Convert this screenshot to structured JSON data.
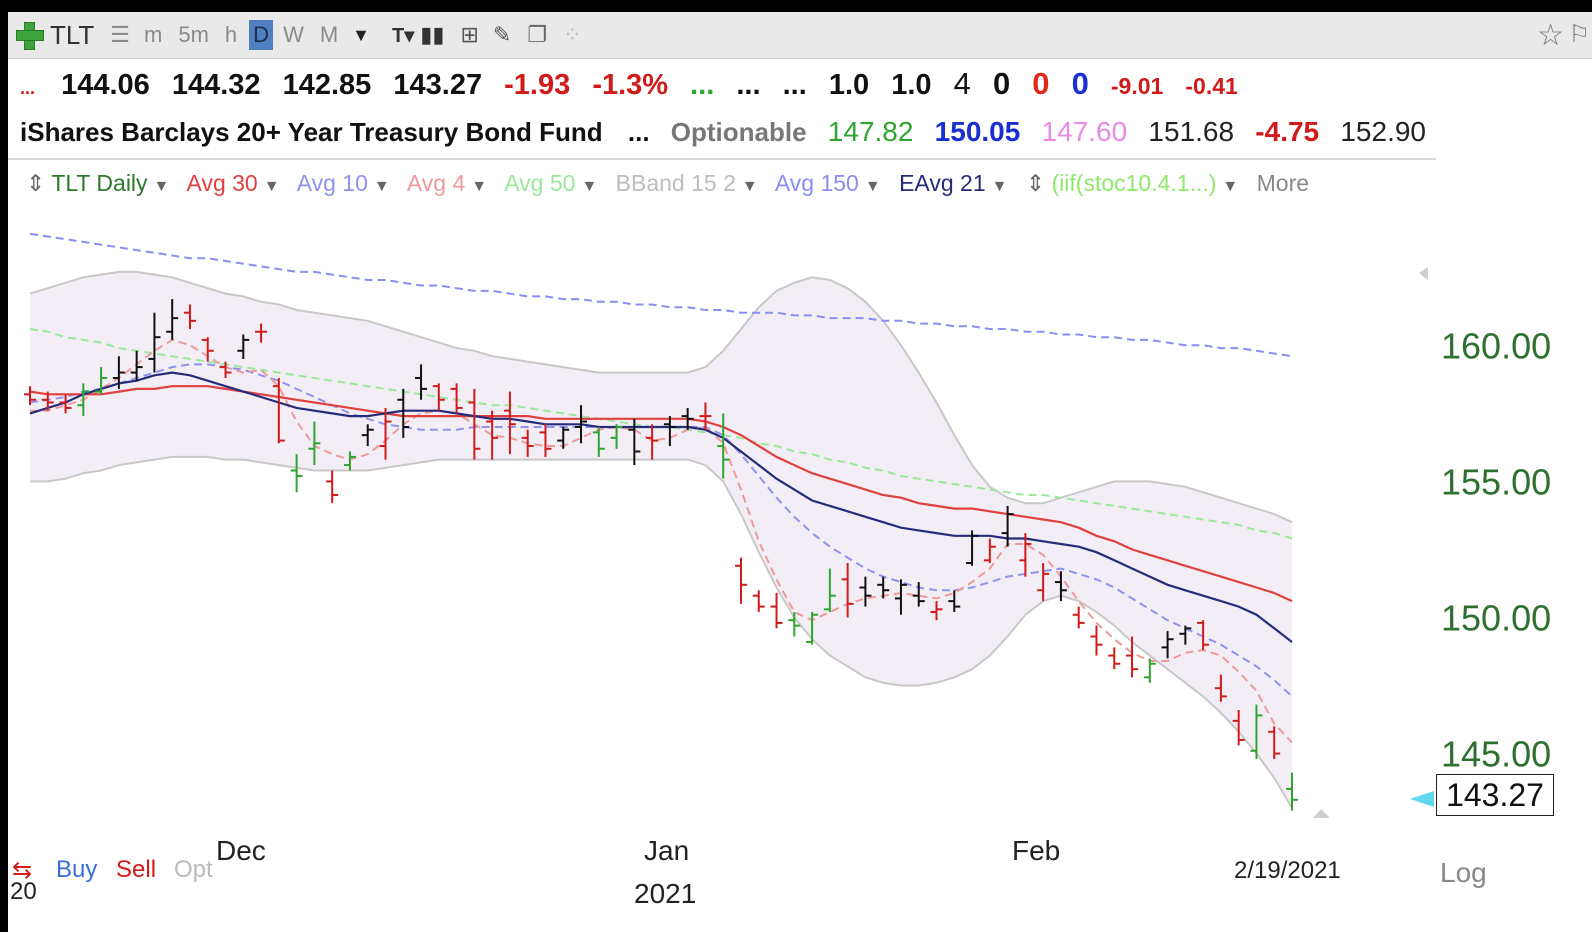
{
  "toolbar": {
    "symbol": "TLT",
    "intervals": [
      "m",
      "5m",
      "h",
      "D",
      "W",
      "M"
    ],
    "active_interval": "D",
    "icons": [
      "plus-icon",
      "list-icon",
      "dropdown-icon",
      "text-tool-icon",
      "bar-style-icon",
      "grid-icon",
      "pencil-icon",
      "pages-icon",
      "dots-icon",
      "star-icon",
      "flag-icon"
    ]
  },
  "quote": {
    "open": "144.06",
    "high": "144.32",
    "low": "142.85",
    "close": "143.27",
    "change": "-1.93",
    "change_pct": "-1.3%",
    "dots_red": "...",
    "dots_green": "...",
    "dots_black1": "...",
    "dots_black2": "...",
    "v1": "1.0",
    "v2": "1.0",
    "n1": "4",
    "n2": "0",
    "n3": "0",
    "n4": "0",
    "m1": "-9.01",
    "m2": "-0.41"
  },
  "fund": {
    "name": "iShares Barclays 20+ Year Treasury Bond Fund",
    "dots": "...",
    "optionable": "Optionable",
    "f1": "147.82",
    "f2": "150.05",
    "f3": "147.60",
    "f4": "151.68",
    "f5": "-4.75",
    "f6": "152.90"
  },
  "colors": {
    "up": "#2fa52f",
    "down": "#d11a1a",
    "neutral": "#111111",
    "avg30": "#e04040",
    "avg10": "#8f92ee",
    "avg4": "#ee9a9a",
    "avg50": "#9be89b",
    "ema21": "#262c7a",
    "avg150": "#8a8ef0",
    "bband": "#c8c8c8",
    "bband_fill": "#f3eef6"
  },
  "chart_data": {
    "type": "ohlc",
    "title": "TLT Daily",
    "indicators": [
      "Avg 30",
      "Avg 10",
      "Avg 4",
      "Avg 50",
      "BBand 15 2",
      "Avg 150",
      "EAvg 21",
      "(iif(stoc10.4.1...)",
      "More"
    ],
    "y_ticks": [
      "160.00",
      "155.00",
      "150.00",
      "145.00"
    ],
    "ylim": [
      142.3,
      164.9
    ],
    "x_ticks": [
      "Dec",
      "Jan",
      "Feb"
    ],
    "year_label": "2021",
    "year_prefix": "20",
    "last_date": "2/19/2021",
    "last_price": "143.27",
    "scale": "Log",
    "buttons": [
      "Buy",
      "Sell",
      "Opt"
    ],
    "ohlc": [
      [
        158.2,
        158.5,
        157.8,
        158.0,
        "down"
      ],
      [
        158.0,
        158.3,
        157.6,
        157.9,
        "down"
      ],
      [
        157.9,
        158.2,
        157.5,
        157.7,
        "down"
      ],
      [
        157.8,
        158.6,
        157.4,
        158.3,
        "up"
      ],
      [
        158.3,
        159.2,
        158.2,
        158.8,
        "up"
      ],
      [
        158.8,
        159.6,
        158.4,
        159.0,
        "neutral"
      ],
      [
        159.0,
        159.8,
        158.7,
        159.2,
        "neutral"
      ],
      [
        159.5,
        161.2,
        159.0,
        160.3,
        "neutral"
      ],
      [
        160.5,
        161.7,
        160.2,
        161.0,
        "neutral"
      ],
      [
        161.2,
        161.5,
        160.6,
        160.9,
        "down"
      ],
      [
        160.2,
        160.3,
        159.4,
        159.8,
        "down"
      ],
      [
        159.2,
        159.4,
        158.8,
        159.0,
        "down"
      ],
      [
        159.8,
        160.4,
        159.5,
        160.2,
        "neutral"
      ],
      [
        160.5,
        160.8,
        160.1,
        160.5,
        "down"
      ],
      [
        158.5,
        158.8,
        156.4,
        156.5,
        "down"
      ],
      [
        155.4,
        156.0,
        154.6,
        155.2,
        "up"
      ],
      [
        156.2,
        157.2,
        155.6,
        156.4,
        "up"
      ],
      [
        155.0,
        155.4,
        154.2,
        154.5,
        "down"
      ],
      [
        155.6,
        156.1,
        155.4,
        155.9,
        "up"
      ],
      [
        156.7,
        157.1,
        156.3,
        156.9,
        "neutral"
      ],
      [
        156.3,
        157.7,
        155.8,
        157.2,
        "down"
      ],
      [
        158.0,
        158.4,
        156.6,
        157.0,
        "neutral"
      ],
      [
        158.8,
        159.3,
        158.0,
        158.4,
        "neutral"
      ],
      [
        158.5,
        158.6,
        157.6,
        158.0,
        "down"
      ],
      [
        158.4,
        158.6,
        157.5,
        157.7,
        "down"
      ],
      [
        157.9,
        158.4,
        155.8,
        156.2,
        "down"
      ],
      [
        157.2,
        157.6,
        155.8,
        156.6,
        "down"
      ],
      [
        157.6,
        158.3,
        156.0,
        157.1,
        "down"
      ],
      [
        156.6,
        156.9,
        155.9,
        156.3,
        "down"
      ],
      [
        156.8,
        157.1,
        155.9,
        156.2,
        "down"
      ],
      [
        156.5,
        157.0,
        156.2,
        156.9,
        "neutral"
      ],
      [
        157.0,
        157.8,
        156.4,
        157.2,
        "neutral"
      ],
      [
        156.8,
        157.0,
        155.9,
        156.2,
        "up"
      ],
      [
        156.6,
        157.1,
        156.2,
        157.0,
        "up"
      ],
      [
        156.9,
        157.3,
        155.6,
        156.1,
        "neutral"
      ],
      [
        156.6,
        157.1,
        155.8,
        156.5,
        "down"
      ],
      [
        157.1,
        157.4,
        156.3,
        157.0,
        "neutral"
      ],
      [
        157.4,
        157.7,
        156.9,
        157.3,
        "neutral"
      ],
      [
        157.4,
        157.9,
        156.9,
        157.4,
        "down"
      ],
      [
        156.3,
        157.5,
        155.1,
        155.8,
        "up"
      ],
      [
        151.9,
        152.2,
        150.5,
        151.2,
        "down"
      ],
      [
        150.8,
        151.0,
        150.2,
        150.4,
        "down"
      ],
      [
        150.4,
        150.9,
        149.6,
        149.8,
        "down"
      ],
      [
        149.9,
        150.2,
        149.3,
        149.7,
        "up"
      ],
      [
        149.1,
        150.2,
        149.0,
        150.1,
        "up"
      ],
      [
        150.3,
        151.8,
        150.2,
        150.8,
        "up"
      ],
      [
        151.4,
        152.0,
        150.0,
        150.5,
        "down"
      ],
      [
        151.1,
        151.5,
        150.4,
        150.8,
        "neutral"
      ],
      [
        151.2,
        151.5,
        150.7,
        151.0,
        "neutral"
      ],
      [
        150.7,
        151.4,
        150.1,
        151.2,
        "neutral"
      ],
      [
        150.8,
        151.3,
        150.4,
        150.6,
        "neutral"
      ],
      [
        150.2,
        150.6,
        149.9,
        150.3,
        "down"
      ],
      [
        150.6,
        151.0,
        150.2,
        150.4,
        "neutral"
      ],
      [
        152.0,
        153.2,
        151.9,
        153.0,
        "neutral"
      ],
      [
        152.1,
        152.9,
        152.0,
        152.6,
        "down"
      ],
      [
        153.1,
        154.1,
        152.6,
        153.8,
        "neutral"
      ],
      [
        152.1,
        153.1,
        151.5,
        152.7,
        "down"
      ],
      [
        151.0,
        152.0,
        150.6,
        151.6,
        "down"
      ],
      [
        151.3,
        151.7,
        150.6,
        151.0,
        "neutral"
      ],
      [
        150.1,
        150.4,
        149.6,
        149.8,
        "down"
      ],
      [
        149.3,
        149.7,
        148.6,
        149.0,
        "down"
      ],
      [
        148.6,
        148.9,
        148.1,
        148.3,
        "down"
      ],
      [
        148.6,
        149.3,
        147.8,
        148.1,
        "down"
      ],
      [
        147.8,
        148.5,
        147.6,
        148.3,
        "up"
      ],
      [
        148.9,
        149.5,
        148.5,
        149.2,
        "neutral"
      ],
      [
        149.4,
        149.7,
        149.0,
        149.6,
        "neutral"
      ],
      [
        149.8,
        149.9,
        148.8,
        149.0,
        "down"
      ],
      [
        147.4,
        147.9,
        146.9,
        147.1,
        "down"
      ],
      [
        146.2,
        146.6,
        145.3,
        145.5,
        "down"
      ],
      [
        145.1,
        146.8,
        144.8,
        146.4,
        "up"
      ],
      [
        145.8,
        146.0,
        144.8,
        145.0,
        "down"
      ],
      [
        143.7,
        144.3,
        142.9,
        143.3,
        "up"
      ]
    ],
    "series": {
      "ema21": [
        157.5,
        157.7,
        157.9,
        158.2,
        158.4,
        158.6,
        158.7,
        158.9,
        159.0,
        158.9,
        158.7,
        158.5,
        158.3,
        158.1,
        157.9,
        157.7,
        157.6,
        157.5,
        157.4,
        157.4,
        157.5,
        157.6,
        157.6,
        157.6,
        157.5,
        157.4,
        157.3,
        157.3,
        157.2,
        157.1,
        157.1,
        157.1,
        157.0,
        157.0,
        157.0,
        157.0,
        157.0,
        157.0,
        156.9,
        156.6,
        156.1,
        155.6,
        155.1,
        154.7,
        154.3,
        154.1,
        153.9,
        153.7,
        153.5,
        153.3,
        153.2,
        153.1,
        153.0,
        153.0,
        153.0,
        152.9,
        152.9,
        152.8,
        152.7,
        152.6,
        152.4,
        152.1,
        151.8,
        151.5,
        151.2,
        151.0,
        150.8,
        150.6,
        150.4,
        150.1,
        149.6,
        149.1
      ],
      "avg30": [
        158.3,
        158.2,
        158.2,
        158.2,
        158.2,
        158.3,
        158.4,
        158.4,
        158.5,
        158.5,
        158.5,
        158.4,
        158.3,
        158.2,
        158.1,
        158.0,
        157.9,
        157.8,
        157.7,
        157.6,
        157.5,
        157.4,
        157.4,
        157.4,
        157.4,
        157.4,
        157.4,
        157.4,
        157.4,
        157.3,
        157.3,
        157.3,
        157.3,
        157.3,
        157.3,
        157.3,
        157.3,
        157.3,
        157.2,
        157.0,
        156.7,
        156.3,
        155.9,
        155.6,
        155.3,
        155.1,
        154.9,
        154.7,
        154.5,
        154.4,
        154.2,
        154.1,
        154.0,
        154.0,
        153.9,
        153.8,
        153.7,
        153.6,
        153.5,
        153.3,
        153.0,
        152.8,
        152.5,
        152.3,
        152.1,
        151.9,
        151.7,
        151.5,
        151.3,
        151.1,
        150.9,
        150.6
      ],
      "avg10": [
        157.9,
        158.0,
        158.1,
        158.3,
        158.4,
        158.6,
        158.8,
        159.0,
        159.2,
        159.3,
        159.3,
        159.2,
        159.1,
        158.9,
        158.7,
        158.4,
        158.1,
        157.8,
        157.5,
        157.3,
        157.1,
        157.0,
        156.9,
        156.9,
        156.9,
        157.0,
        157.0,
        157.0,
        157.0,
        157.0,
        157.0,
        157.0,
        157.0,
        157.0,
        157.0,
        157.0,
        157.0,
        157.0,
        157.0,
        156.7,
        156.0,
        155.2,
        154.4,
        153.7,
        153.1,
        152.6,
        152.2,
        151.8,
        151.5,
        151.3,
        151.1,
        151.0,
        151.0,
        151.1,
        151.3,
        151.5,
        151.6,
        151.7,
        151.8,
        151.6,
        151.4,
        151.1,
        150.7,
        150.3,
        149.9,
        149.6,
        149.3,
        149.0,
        148.6,
        148.2,
        147.7,
        147.1
      ],
      "avg4": [
        157.6,
        157.6,
        157.8,
        158.0,
        158.4,
        158.8,
        159.3,
        159.8,
        160.2,
        160.0,
        159.6,
        159.2,
        159.0,
        159.1,
        158.5,
        157.2,
        156.3,
        156.0,
        155.8,
        156.0,
        156.5,
        157.1,
        157.5,
        157.6,
        157.5,
        157.1,
        156.7,
        156.6,
        156.4,
        156.3,
        156.3,
        156.6,
        156.9,
        157.0,
        156.9,
        156.5,
        156.6,
        156.9,
        157.0,
        156.4,
        154.7,
        152.8,
        151.4,
        150.2,
        149.9,
        150.2,
        150.5,
        150.7,
        150.8,
        150.9,
        150.8,
        150.7,
        150.9,
        151.3,
        151.8,
        152.7,
        152.7,
        152.3,
        151.5,
        150.6,
        149.8,
        149.2,
        148.7,
        148.4,
        148.4,
        148.7,
        148.8,
        148.6,
        148.0,
        147.3,
        146.1,
        145.4
      ],
      "avg50": [
        160.6,
        160.5,
        160.3,
        160.2,
        160.1,
        159.9,
        159.8,
        159.7,
        159.6,
        159.5,
        159.4,
        159.3,
        159.2,
        159.1,
        159.0,
        158.9,
        158.8,
        158.7,
        158.6,
        158.5,
        158.4,
        158.3,
        158.2,
        158.1,
        158.0,
        157.9,
        157.8,
        157.8,
        157.7,
        157.6,
        157.5,
        157.4,
        157.3,
        157.2,
        157.1,
        157.0,
        157.0,
        156.9,
        156.8,
        156.7,
        156.6,
        156.4,
        156.3,
        156.1,
        156.0,
        155.8,
        155.7,
        155.5,
        155.4,
        155.2,
        155.1,
        155.0,
        154.9,
        154.8,
        154.7,
        154.6,
        154.5,
        154.5,
        154.4,
        154.3,
        154.2,
        154.1,
        154.0,
        153.9,
        153.8,
        153.7,
        153.6,
        153.5,
        153.4,
        153.2,
        153.1,
        152.9
      ],
      "avg150": [
        164.1,
        164.0,
        163.9,
        163.8,
        163.7,
        163.6,
        163.5,
        163.4,
        163.3,
        163.2,
        163.2,
        163.1,
        163.0,
        162.9,
        162.8,
        162.7,
        162.7,
        162.6,
        162.5,
        162.4,
        162.4,
        162.3,
        162.2,
        162.2,
        162.1,
        162.0,
        162.0,
        161.9,
        161.8,
        161.8,
        161.7,
        161.7,
        161.6,
        161.6,
        161.5,
        161.5,
        161.4,
        161.4,
        161.3,
        161.3,
        161.2,
        161.2,
        161.2,
        161.1,
        161.1,
        161.0,
        161.0,
        161.0,
        160.9,
        160.9,
        160.8,
        160.8,
        160.7,
        160.7,
        160.6,
        160.6,
        160.5,
        160.5,
        160.4,
        160.4,
        160.3,
        160.3,
        160.2,
        160.2,
        160.1,
        160.0,
        160.0,
        159.9,
        159.9,
        159.8,
        159.7,
        159.6
      ],
      "bb_upper": [
        161.9,
        162.1,
        162.3,
        162.5,
        162.6,
        162.7,
        162.7,
        162.6,
        162.5,
        162.3,
        162.1,
        161.9,
        161.8,
        161.6,
        161.5,
        161.3,
        161.2,
        161.1,
        161.0,
        160.9,
        160.7,
        160.5,
        160.3,
        160.1,
        159.9,
        159.8,
        159.6,
        159.5,
        159.4,
        159.3,
        159.2,
        159.1,
        159.0,
        159.0,
        159.0,
        159.0,
        159.0,
        159.0,
        159.2,
        159.8,
        160.6,
        161.4,
        162.0,
        162.3,
        162.5,
        162.4,
        162.1,
        161.6,
        160.9,
        160.0,
        159.0,
        157.9,
        156.7,
        155.6,
        154.8,
        154.4,
        154.2,
        154.2,
        154.4,
        154.6,
        154.8,
        155.0,
        155.0,
        155.0,
        154.9,
        154.8,
        154.6,
        154.4,
        154.2,
        154.0,
        153.8,
        153.5
      ],
      "bb_lower": [
        155.0,
        155.0,
        155.1,
        155.3,
        155.4,
        155.6,
        155.7,
        155.8,
        155.9,
        155.9,
        155.9,
        155.8,
        155.8,
        155.7,
        155.6,
        155.5,
        155.4,
        155.4,
        155.4,
        155.4,
        155.5,
        155.6,
        155.7,
        155.8,
        155.8,
        155.8,
        155.8,
        155.8,
        155.8,
        155.8,
        155.8,
        155.8,
        155.8,
        155.8,
        155.8,
        155.8,
        155.8,
        155.8,
        155.6,
        155.0,
        153.8,
        152.4,
        151.1,
        150.0,
        149.2,
        148.6,
        148.2,
        147.8,
        147.6,
        147.5,
        147.5,
        147.6,
        147.8,
        148.1,
        148.6,
        149.3,
        150.1,
        150.6,
        150.8,
        150.6,
        150.2,
        149.7,
        149.1,
        148.6,
        148.1,
        147.6,
        147.1,
        146.5,
        145.8,
        145.0,
        144.1,
        143.0
      ]
    }
  }
}
